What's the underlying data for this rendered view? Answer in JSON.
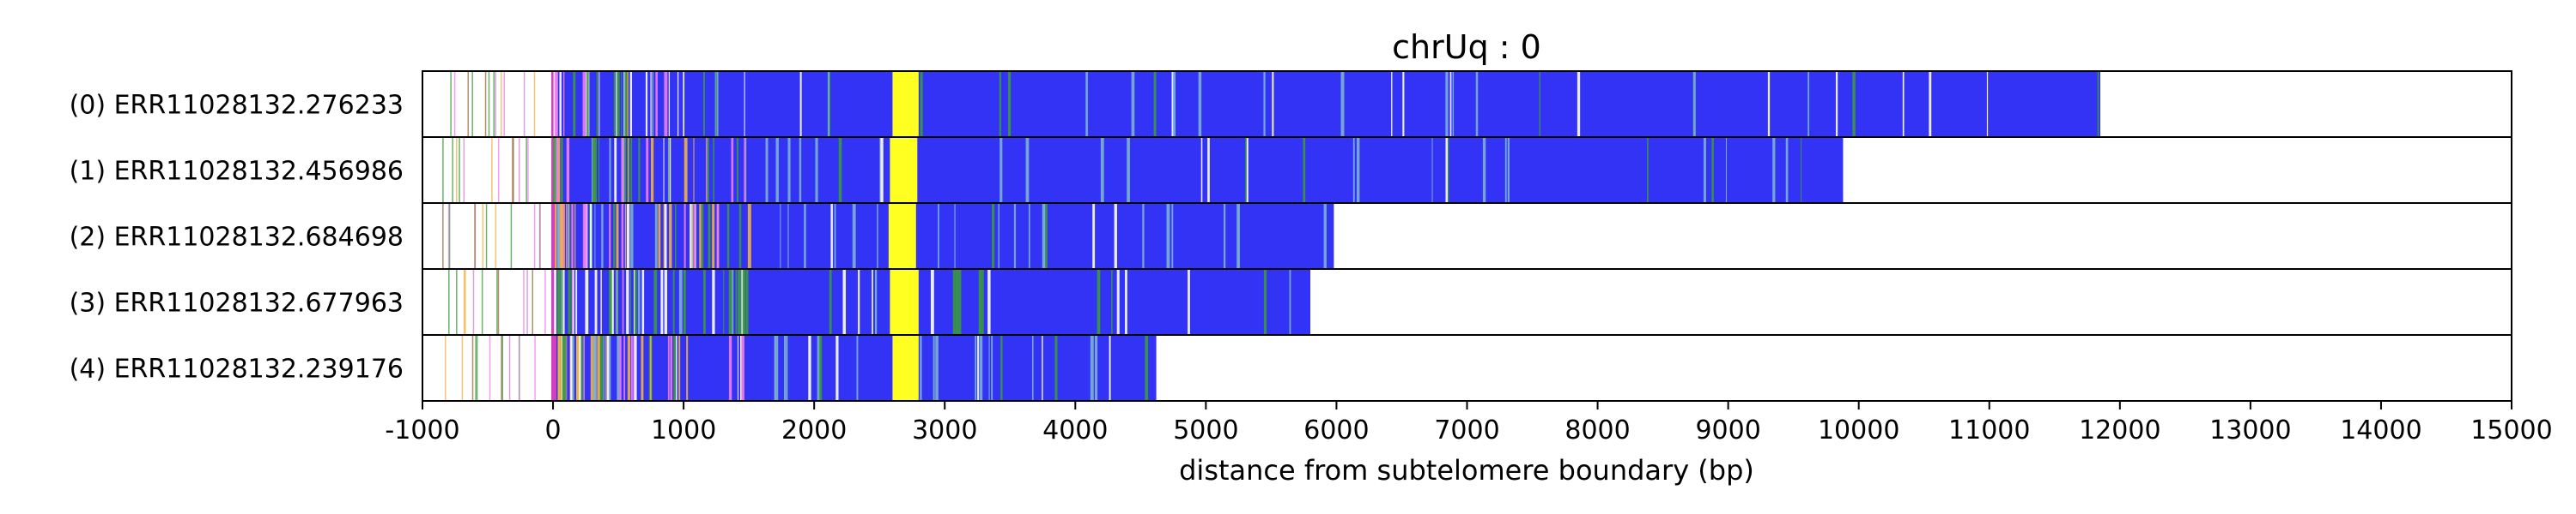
{
  "chart_data": {
    "type": "bar",
    "title": "chrUq : 0",
    "xlabel": "distance from subtelomere boundary (bp)",
    "ylabel": "",
    "xlim": [
      -1000,
      15000
    ],
    "xticks": [
      -1000,
      0,
      1000,
      2000,
      3000,
      4000,
      5000,
      6000,
      7000,
      8000,
      9000,
      10000,
      11000,
      12000,
      13000,
      14000,
      15000
    ],
    "grid": "vertical dashed",
    "colors": {
      "main": "#3333f5",
      "yellow": "#ffff22",
      "green": "#3a9a3a",
      "pink": "#f07cf0",
      "orange": "#f0b040",
      "magenta": "#d040c0",
      "white": "#ffffff"
    },
    "reads": [
      {
        "label": "(0) ERR11028132.276233",
        "start": 0,
        "end": 11850,
        "yellow": [
          2600,
          2800
        ],
        "green_density": 0.25,
        "white_density": 0.25
      },
      {
        "label": "(1) ERR11028132.456986",
        "start": 0,
        "end": 9880,
        "yellow": [
          2580,
          2790
        ],
        "green_density": 0.2,
        "white_density": 0.18
      },
      {
        "label": "(2) ERR11028132.684698",
        "start": 0,
        "end": 5980,
        "yellow": [
          2570,
          2780
        ],
        "green_density": 0.15,
        "white_density": 0.12
      },
      {
        "label": "(3) ERR11028132.677963",
        "start": 0,
        "end": 5800,
        "yellow": [
          2580,
          2800
        ],
        "green_density": 0.45,
        "white_density": 0.3
      },
      {
        "label": "(4) ERR11028132.239176",
        "start": 0,
        "end": 4620,
        "yellow": [
          2600,
          2800
        ],
        "green_density": 0.15,
        "white_density": 0.2
      }
    ]
  }
}
